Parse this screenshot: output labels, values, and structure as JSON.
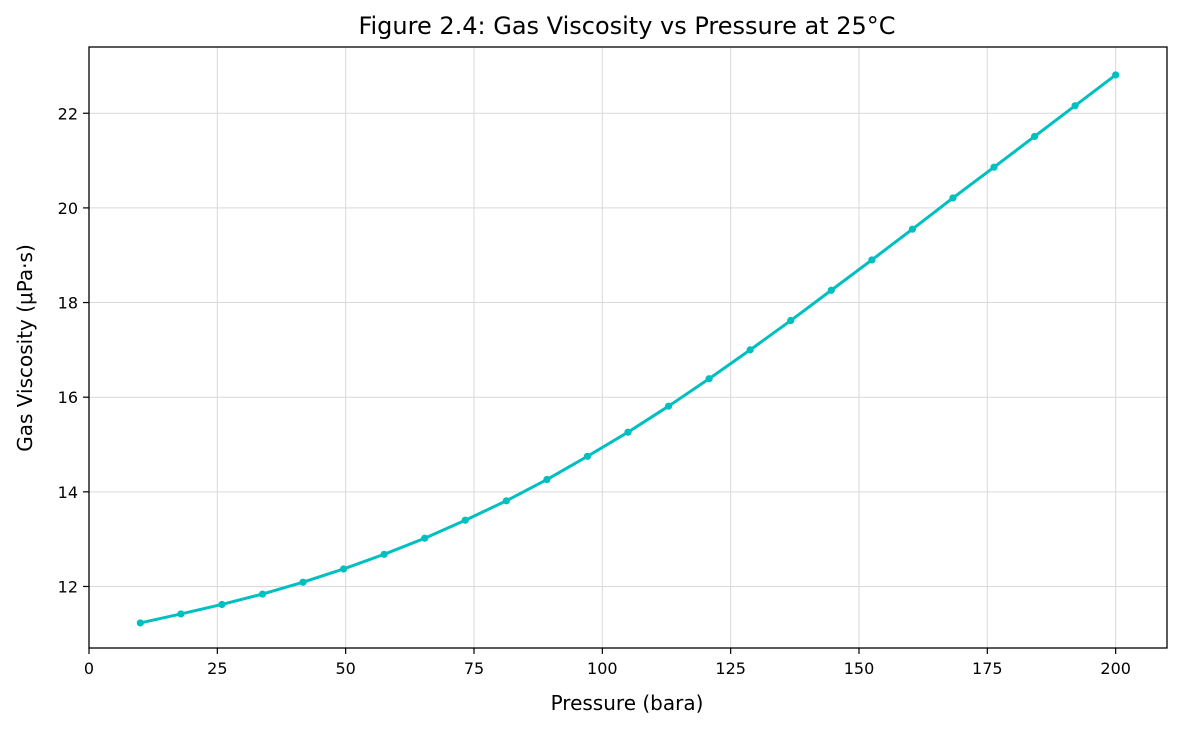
{
  "chart_data": {
    "type": "line",
    "title": "Figure 2.4: Gas Viscosity vs Pressure at 25°C",
    "xlabel": "Pressure (bara)",
    "ylabel": "Gas Viscosity (μPa·s)",
    "xlim": [
      0,
      210
    ],
    "ylim": [
      10.7,
      23.4
    ],
    "xticks": [
      "0",
      "25",
      "50",
      "75",
      "100",
      "125",
      "150",
      "175",
      "200"
    ],
    "yticks": [
      "12",
      "14",
      "16",
      "18",
      "20",
      "22"
    ],
    "grid": true,
    "color": "#00bfc0",
    "series": [
      {
        "x": [
          10,
          17.9,
          25.9,
          33.8,
          41.7,
          49.6,
          57.5,
          65.4,
          73.3,
          81.3,
          89.2,
          97.1,
          105,
          112.9,
          120.8,
          128.8,
          136.7,
          144.6,
          152.5,
          160.4,
          168.3,
          176.3,
          184.2,
          192.1,
          200
        ],
        "y": [
          11.23,
          11.42,
          11.62,
          11.84,
          12.09,
          12.37,
          12.68,
          13.02,
          13.4,
          13.81,
          14.26,
          14.75,
          15.26,
          15.81,
          16.39,
          17.0,
          17.62,
          18.26,
          18.9,
          19.55,
          20.21,
          20.86,
          21.51,
          22.16,
          22.81
        ]
      }
    ]
  }
}
